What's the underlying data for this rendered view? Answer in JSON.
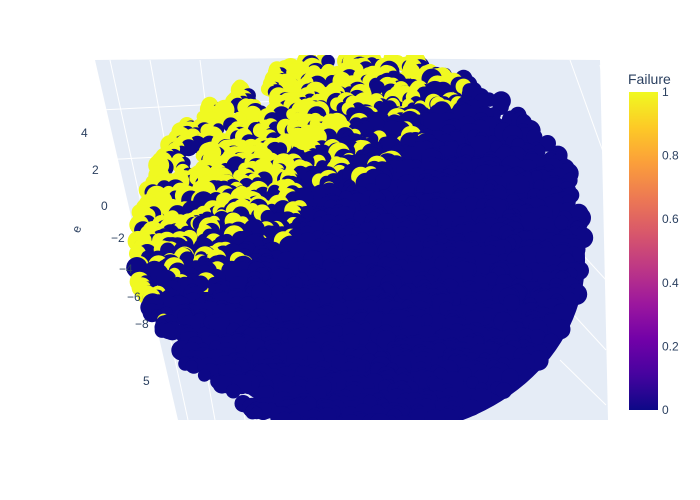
{
  "chart_data": {
    "type": "scatter",
    "mode": "3d",
    "title": "",
    "colorbar": {
      "title": "Failure",
      "range": [
        0,
        1
      ],
      "ticks": [
        "0",
        "0.2",
        "0.4",
        "0.6",
        "0.8",
        "1"
      ],
      "colorscale": [
        "#0d0887",
        "#46039f",
        "#7201a8",
        "#9c179e",
        "#bd3786",
        "#d8576b",
        "#ed7953",
        "#fb9f3a",
        "#fdca26",
        "#f0f921"
      ]
    },
    "axis_ticks_left": [
      "4",
      "2",
      "0",
      "−2",
      "−4",
      "−6",
      "−8"
    ],
    "axis_ticks_depth": [
      "5"
    ],
    "axis_label_cut": "e",
    "classes": [
      {
        "value": 0,
        "color": "#0d0887"
      },
      {
        "value": 1,
        "color": "#f0f921"
      }
    ]
  }
}
